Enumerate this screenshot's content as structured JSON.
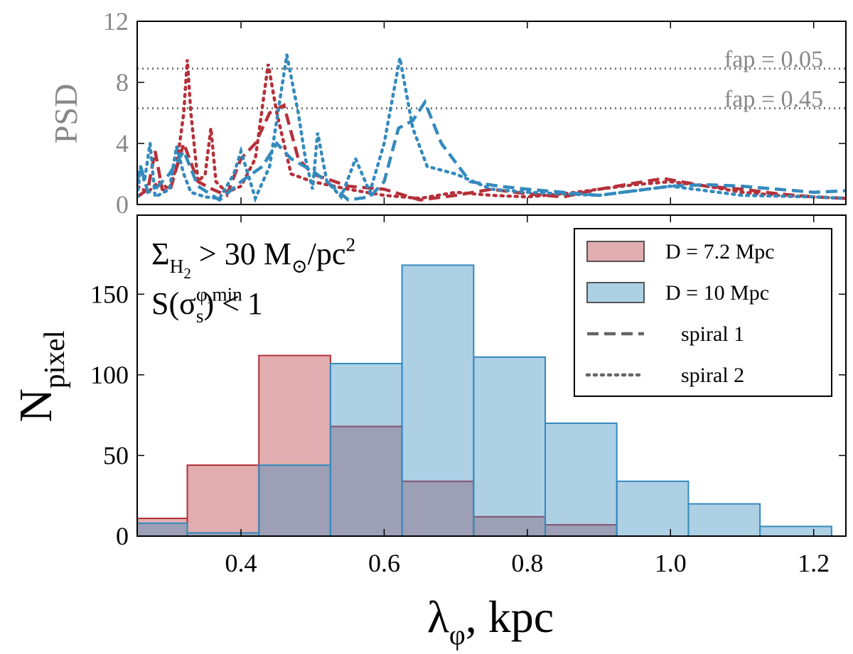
{
  "chart_data": [
    {
      "type": "line",
      "ylabel": [
        {
          "text": "PSD",
          "shift": 0
        }
      ],
      "xlim": [
        0.255,
        1.245
      ],
      "xticks": [
        0.4,
        0.6,
        0.8,
        {
          "value": 1,
          "label": "1.0"
        },
        1.2
      ],
      "ylim": [
        0,
        12
      ],
      "yticks": [
        0,
        4,
        8,
        12
      ],
      "hlines": [
        {
          "value": 8.9,
          "label": "fap = 0.05"
        },
        {
          "value": 6.3,
          "label": "fap = 0.45"
        }
      ],
      "linestyles": [
        {
          "name": "spiral 1",
          "dash": "dashed"
        },
        {
          "name": "spiral 2",
          "dash": "dotted"
        }
      ],
      "series": [
        {
          "color": "#b5313a",
          "dash": "dotted",
          "x": [
            0.255,
            0.27,
            0.285,
            0.3,
            0.31,
            0.32,
            0.325,
            0.33,
            0.34,
            0.35,
            0.358,
            0.365,
            0.38,
            0.4,
            0.42,
            0.438,
            0.45,
            0.47,
            0.5,
            0.55,
            0.6,
            0.65,
            0.7,
            0.75,
            0.8,
            0.85,
            0.9,
            0.95,
            1.0,
            1.05,
            1.1,
            1.15,
            1.2,
            1.245
          ],
          "values": [
            1.2,
            0.8,
            1.5,
            1.0,
            2.5,
            6,
            9.5,
            6,
            1.5,
            2,
            5,
            1.5,
            0.8,
            1.2,
            3,
            9.2,
            6,
            2,
            1.5,
            1.0,
            0.6,
            0.4,
            0.8,
            0.6,
            0.5,
            0.7,
            1.0,
            1.3,
            1.5,
            1.2,
            0.8,
            0.6,
            0.5,
            0.4
          ]
        },
        {
          "color": "#b5313a",
          "dash": "dashed",
          "x": [
            0.255,
            0.27,
            0.28,
            0.29,
            0.3,
            0.32,
            0.34,
            0.36,
            0.38,
            0.4,
            0.42,
            0.44,
            0.46,
            0.48,
            0.5,
            0.55,
            0.6,
            0.65,
            0.7,
            0.75,
            0.8,
            0.85,
            0.9,
            0.95,
            0.99,
            1.05,
            1.1,
            1.15,
            1.2,
            1.245
          ],
          "values": [
            0.5,
            1.0,
            3.5,
            1.0,
            0.8,
            4,
            1.5,
            1.0,
            0.6,
            3,
            4,
            6,
            6.5,
            3,
            2,
            1.2,
            1.0,
            0.3,
            0.6,
            1.0,
            0.7,
            0.5,
            1.0,
            1.4,
            1.7,
            1.2,
            1.0,
            0.7,
            0.5,
            0.4
          ]
        },
        {
          "color": "#348abd",
          "dash": "dotted",
          "x": [
            0.255,
            0.26,
            0.265,
            0.273,
            0.28,
            0.3,
            0.31,
            0.32,
            0.33,
            0.35,
            0.37,
            0.39,
            0.4,
            0.42,
            0.44,
            0.464,
            0.48,
            0.49,
            0.5,
            0.507,
            0.52,
            0.54,
            0.56,
            0.58,
            0.6,
            0.622,
            0.64,
            0.66,
            0.7,
            0.75,
            0.8,
            0.9,
            1.0,
            1.1,
            1.2,
            1.245
          ],
          "values": [
            0.5,
            2.5,
            1.5,
            4,
            0.5,
            1.0,
            3.8,
            2,
            0.8,
            0.5,
            0.4,
            2,
            3.5,
            0.4,
            2.5,
            9.8,
            6,
            3,
            1.0,
            4.7,
            1.5,
            0.5,
            3,
            0.8,
            4,
            9.6,
            5,
            2.5,
            2,
            1.0,
            0.8,
            0.6,
            1.2,
            0.6,
            0.5,
            0.4
          ]
        },
        {
          "color": "#348abd",
          "dash": "dashed",
          "x": [
            0.255,
            0.26,
            0.27,
            0.28,
            0.3,
            0.32,
            0.34,
            0.37,
            0.4,
            0.43,
            0.45,
            0.47,
            0.5,
            0.52,
            0.55,
            0.58,
            0.6,
            0.62,
            0.64,
            0.657,
            0.68,
            0.72,
            0.76,
            0.8,
            0.85,
            0.9,
            0.95,
            1.0,
            1.05,
            1.1,
            1.15,
            1.2,
            1.245
          ],
          "values": [
            1.5,
            2.5,
            0.8,
            1.0,
            2,
            3.5,
            1.2,
            0.3,
            1.5,
            2.5,
            4,
            3,
            2.2,
            1.5,
            0.3,
            0.5,
            1.5,
            5,
            5.5,
            6.7,
            4,
            1.5,
            1.2,
            1.0,
            0.8,
            0.6,
            0.9,
            1.2,
            1.3,
            1.2,
            1.0,
            0.8,
            0.9
          ]
        }
      ]
    },
    {
      "type": "histogram",
      "xlabel": [
        {
          "text": "λ",
          "shift": 0
        },
        {
          "text": "φ",
          "shift": -1
        },
        {
          "text": ", kpc",
          "shift": 0
        }
      ],
      "ylabel": [
        {
          "text": "N",
          "shift": 0
        },
        {
          "text": "pixel",
          "shift": -1
        }
      ],
      "annotations": [
        [
          {
            "text": "Σ",
            "shift": 0
          },
          {
            "text": "H",
            "shift": -1
          },
          {
            "text": "2",
            "shift": -2
          },
          {
            "text": " > 30 M",
            "shift": 0
          },
          {
            "text": "⊙",
            "shift": -1
          },
          {
            "text": "/pc",
            "shift": 0
          },
          {
            "text": "2",
            "shift": 1
          }
        ],
        [
          {
            "text": "S(σ",
            "shift": 0
          },
          {
            "text": "φ,min",
            "shift": 1
          },
          {
            "text": "s",
            "shift": -1,
            "stack": true
          },
          {
            "text": ") < 1",
            "shift": 0
          }
        ]
      ],
      "xlim": [
        0.255,
        1.245
      ],
      "xticks": [
        0.4,
        0.6,
        0.8,
        {
          "value": 1,
          "label": "1.0"
        },
        1.2
      ],
      "ylim": [
        0,
        199
      ],
      "yticks": [
        0,
        50,
        100,
        150
      ],
      "legend": "upper right",
      "bins": [
        0.225,
        0.325,
        0.425,
        0.525,
        0.625,
        0.725,
        0.825,
        0.925,
        1.025,
        1.125,
        1.225
      ],
      "series": [
        {
          "name": "D = 7.2 Mpc",
          "color": "#b5313a",
          "values": [
            11,
            44,
            112,
            68,
            34,
            12,
            7,
            0,
            0,
            0
          ]
        },
        {
          "name": "D = 10 Mpc",
          "color": "#348abd",
          "values": [
            8,
            2,
            44,
            107,
            168,
            111,
            70,
            34,
            20,
            6
          ]
        }
      ]
    }
  ]
}
